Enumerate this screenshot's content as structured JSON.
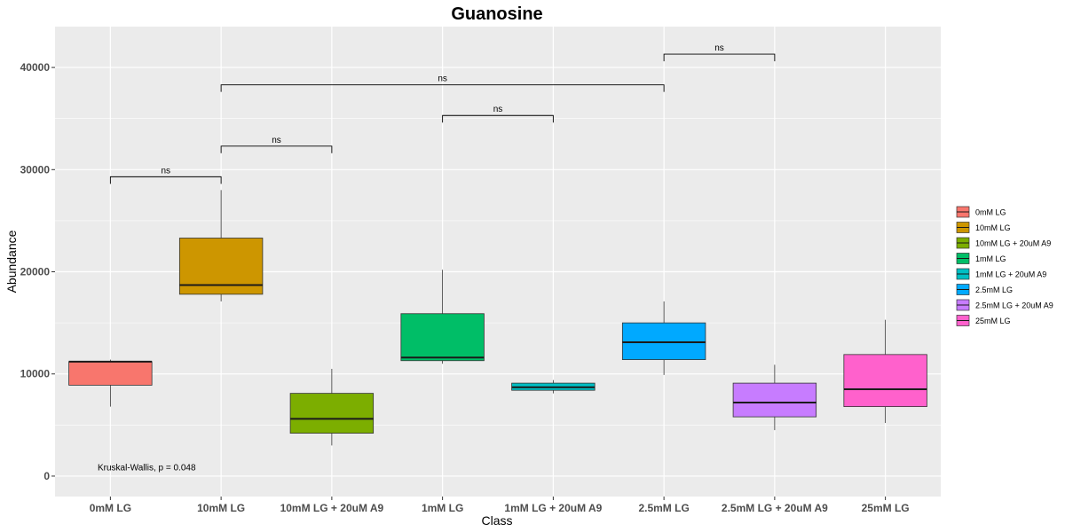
{
  "chart_data": {
    "type": "box",
    "title": "Guanosine",
    "xlabel": "Class",
    "ylabel": "Abundance",
    "ylim": [
      -2000,
      44000
    ],
    "yticks": [
      0,
      10000,
      20000,
      30000,
      40000
    ],
    "ytick_labels": [
      "0",
      "10000",
      "20000",
      "30000",
      "40000"
    ],
    "grid": true,
    "legend_position": "right",
    "categories": [
      "0mM LG",
      "10mM LG",
      "10mM LG + 20uM A9",
      "1mM LG",
      "1mM LG + 20uM A9",
      "2.5mM LG",
      "2.5mM LG + 20uM A9",
      "25mM LG"
    ],
    "boxes": [
      {
        "name": "0mM LG",
        "color": "#F8766D",
        "whisker_low": 6800,
        "q1": 8900,
        "median": 11200,
        "q3": 11200,
        "whisker_high": 11400
      },
      {
        "name": "10mM LG",
        "color": "#CD9600",
        "whisker_low": 17100,
        "q1": 17800,
        "median": 18700,
        "q3": 23300,
        "whisker_high": 28000
      },
      {
        "name": "10mM LG + 20uM A9",
        "color": "#7CAE00",
        "whisker_low": 3000,
        "q1": 4200,
        "median": 5600,
        "q3": 8100,
        "whisker_high": 10500
      },
      {
        "name": "1mM LG",
        "color": "#00BE67",
        "whisker_low": 11000,
        "q1": 11300,
        "median": 11600,
        "q3": 15900,
        "whisker_high": 20200
      },
      {
        "name": "1mM LG + 20uM A9",
        "color": "#00BFC4",
        "whisker_low": 8100,
        "q1": 8400,
        "median": 8700,
        "q3": 9100,
        "whisker_high": 9400
      },
      {
        "name": "2.5mM LG",
        "color": "#00A9FF",
        "whisker_low": 9900,
        "q1": 11400,
        "median": 13100,
        "q3": 15000,
        "whisker_high": 17100
      },
      {
        "name": "2.5mM LG + 20uM A9",
        "color": "#C77CFF",
        "whisker_low": 4500,
        "q1": 5800,
        "median": 7200,
        "q3": 9100,
        "whisker_high": 10900
      },
      {
        "name": "25mM LG",
        "color": "#FF61CC",
        "whisker_low": 5200,
        "q1": 6800,
        "median": 8500,
        "q3": 11900,
        "whisker_high": 15300
      }
    ],
    "comparisons": [
      {
        "from": 0,
        "to": 1,
        "y": 29300,
        "label": "ns"
      },
      {
        "from": 1,
        "to": 2,
        "y": 32300,
        "label": "ns"
      },
      {
        "from": 3,
        "to": 4,
        "y": 35300,
        "label": "ns"
      },
      {
        "from": 1,
        "to": 5,
        "y": 38300,
        "label": "ns"
      },
      {
        "from": 5,
        "to": 6,
        "y": 41300,
        "label": "ns"
      }
    ],
    "annotation": {
      "text": "Kruskal-Wallis, p = 0.048",
      "x_index": 0.3,
      "y": 400
    }
  }
}
